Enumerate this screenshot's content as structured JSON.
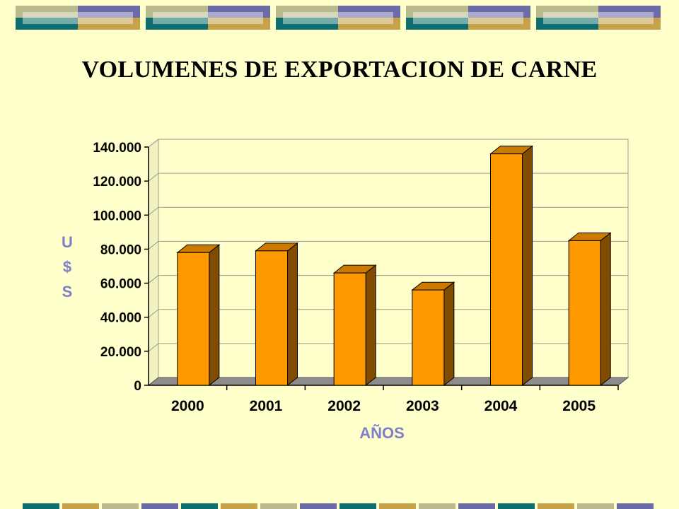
{
  "slide": {
    "title": "VOLUMENES DE EXPORTACION DE CARNE"
  },
  "colors": {
    "background": "#FFFFCC",
    "bar_front": "#FF9900",
    "bar_top": "#CC7A00",
    "bar_side": "#804C00",
    "axis_title": "#7F7FC8",
    "band_olive": "#B9BB8C",
    "band_slate": "#6B6BA5",
    "band_teal": "#0F6E6E",
    "band_gold": "#C8A24A"
  },
  "chart_data": {
    "type": "bar",
    "title": "VOLUMENES DE EXPORTACION DE CARNE",
    "xlabel": "AÑOS",
    "ylabel": "U $ S",
    "categories": [
      "2000",
      "2001",
      "2002",
      "2003",
      "2004",
      "2005"
    ],
    "values": [
      78000,
      79000,
      66000,
      56000,
      136000,
      85000
    ],
    "ylim": [
      0,
      140000
    ],
    "yticks": [
      "0",
      "20.000",
      "40.000",
      "60.000",
      "80.000",
      "100.000",
      "120.000",
      "140.000"
    ],
    "grid": true,
    "legend": "none",
    "style": "3d-column"
  }
}
